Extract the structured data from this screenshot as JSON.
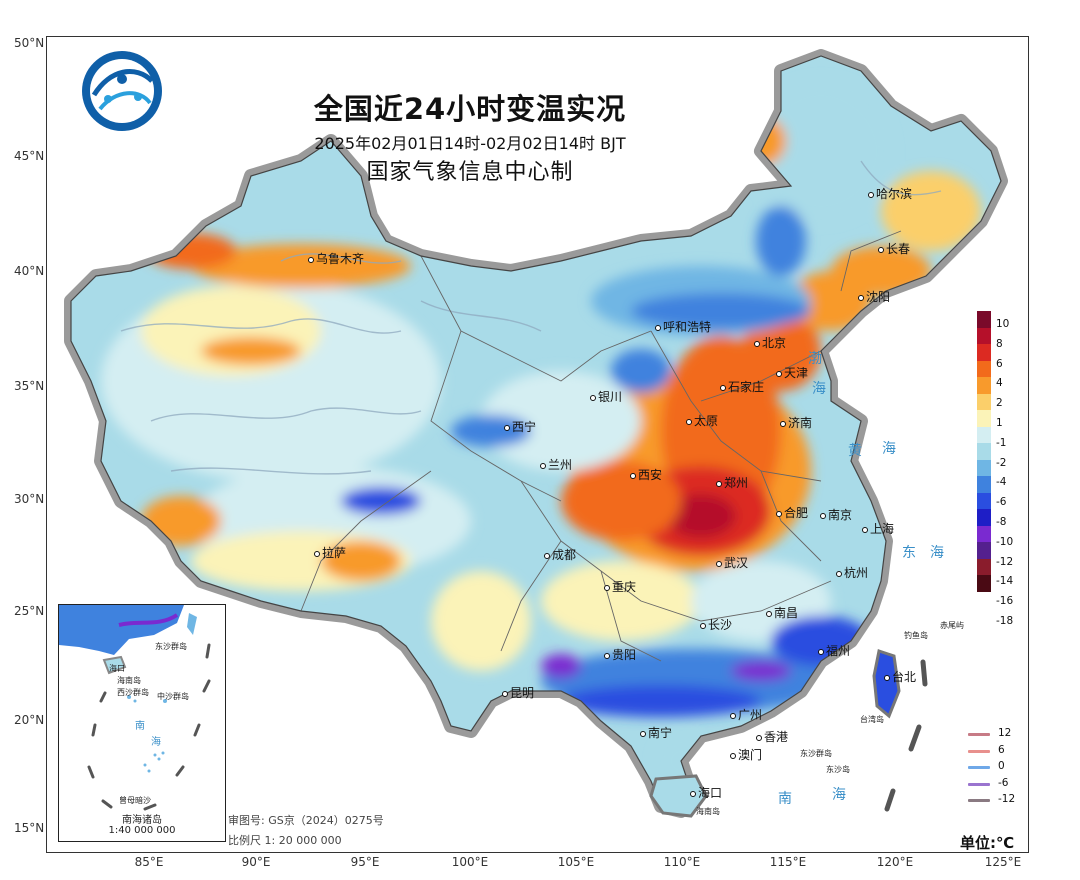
{
  "title": "全国近24小时变温实况",
  "subtitle": "2025年02月01日14时-02月02日14时  BJT",
  "issuer": "国家气象信息中心制",
  "lat_labels": [
    "50°N",
    "45°N",
    "40°N",
    "35°N",
    "30°N",
    "25°N",
    "20°N",
    "15°N"
  ],
  "lon_labels": [
    "85°E",
    "90°E",
    "95°E",
    "100°E",
    "105°E",
    "110°E",
    "115°E",
    "120°E",
    "125°E"
  ],
  "cities": [
    "乌鲁木齐",
    "呼和浩特",
    "银川",
    "西宁",
    "兰州",
    "太原",
    "石家庄",
    "北京",
    "天津",
    "济南",
    "西安",
    "郑州",
    "合肥",
    "南京",
    "上海",
    "杭州",
    "成都",
    "重庆",
    "武汉",
    "长沙",
    "南昌",
    "福州",
    "贵阳",
    "昆明",
    "南宁",
    "广州",
    "香港",
    "澳门",
    "海口",
    "拉萨",
    "哈尔滨",
    "长春",
    "沈阳",
    "台北"
  ],
  "seas": [
    "渤",
    "海",
    "黄",
    "海",
    "东",
    "海",
    "南",
    "海"
  ],
  "small_labels": [
    "钓鱼岛",
    "赤尾屿",
    "台湾岛",
    "东沙群岛",
    "东沙岛",
    "海南岛"
  ],
  "legend": {
    "labels": [
      "10",
      "8",
      "6",
      "4",
      "2",
      "1",
      "-1",
      "-2",
      "-4",
      "-6",
      "-8",
      "-10",
      "-12",
      "-14",
      "-16",
      "-18"
    ],
    "colors": [
      "#7a0a2a",
      "#b5102a",
      "#dc2a22",
      "#f26a1b",
      "#f89a2c",
      "#fbcf6a",
      "#fbf3b8",
      "#d4eef2",
      "#a9dbe8",
      "#6fb6e4",
      "#3f82de",
      "#2a4ee0",
      "#1e1ec6",
      "#7a2ad0",
      "#54208e",
      "#8a1c2c",
      "#4a0a14"
    ]
  },
  "line_legend": [
    {
      "label": "12",
      "color": "#c77b86"
    },
    {
      "label": "6",
      "color": "#e8908d"
    },
    {
      "label": "0",
      "color": "#6fa8e8"
    },
    {
      "label": "-6",
      "color": "#9a74cf"
    },
    {
      "label": "-12",
      "color": "#8a7a82"
    }
  ],
  "unit": "单位:℃",
  "review_no": "审图号: GS京（2024）0275号",
  "scale": "比例尺 1: 20 000 000",
  "inset": {
    "title": "南海诸岛",
    "scale": "1:40 000 000",
    "labels": [
      "海口",
      "海南岛",
      "西沙群岛",
      "中沙群岛",
      "东沙群岛",
      "南",
      "海",
      "曾母暗沙"
    ]
  }
}
